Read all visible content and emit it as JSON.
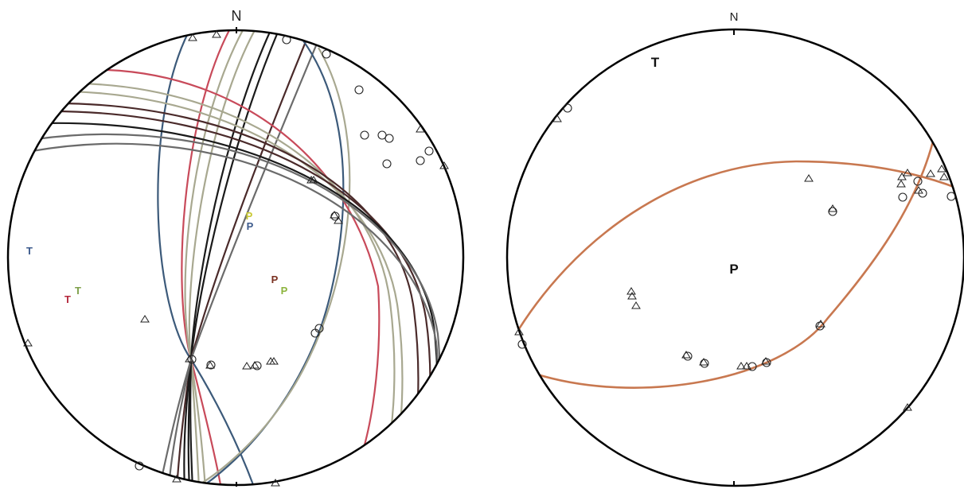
{
  "left": {
    "north_label": "N",
    "axis_labels": [
      {
        "text": "P",
        "color": "#c8c832"
      },
      {
        "text": "P",
        "color": "#3c5a8c"
      },
      {
        "text": "T",
        "color": "#3c5a8c"
      },
      {
        "text": "T",
        "color": "#7ea04a"
      },
      {
        "text": "T",
        "color": "#b4283c"
      },
      {
        "text": "P",
        "color": "#7a3020"
      },
      {
        "text": "P",
        "color": "#8cb43c"
      }
    ],
    "plane_colors": [
      "#1a1a1a",
      "#4a2a2a",
      "#6b6b6b",
      "#a8a890",
      "#c84a5a",
      "#3c5a7a"
    ]
  },
  "right": {
    "north_label": "N",
    "axis_labels": [
      {
        "text": "T",
        "color": "#111111"
      },
      {
        "text": "P",
        "color": "#111111"
      }
    ],
    "plane_color": "#c87850"
  }
}
